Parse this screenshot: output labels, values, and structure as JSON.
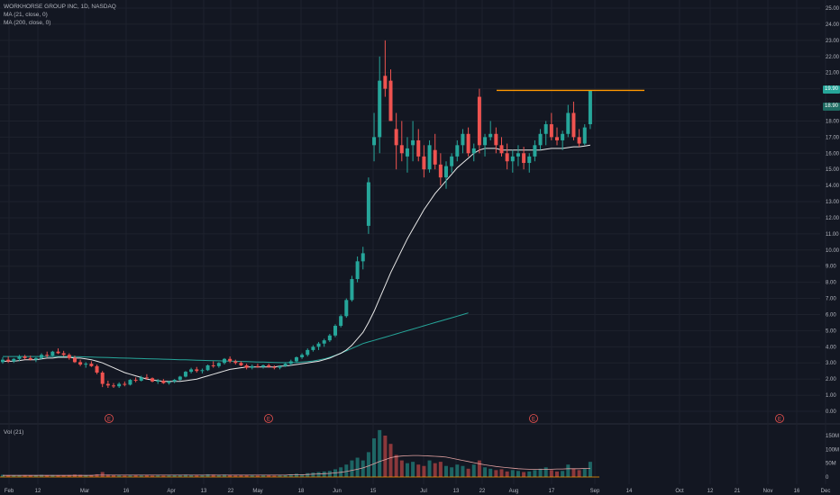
{
  "legend": {
    "title": "WORKHORSE GROUP INC, 1D, NASDAQ",
    "ma1": "MA (21, close, 0)",
    "ma2": "MA (200, close, 0)"
  },
  "volume_label": "Vol (21)",
  "price_tags": [
    "19.90",
    "18.90"
  ],
  "colors": {
    "background": "#131722",
    "up": "#26a69a",
    "down": "#ef5350",
    "ma21": "#e8e8e8",
    "ma200": "#26a69a",
    "resistance": "#ff9800",
    "grid": "#1e222d",
    "axis_text": "#b2b5be"
  },
  "chart_data": {
    "type": "candlestick",
    "title": "WORKHORSE GROUP INC, 1D, NASDAQ",
    "price_ticks": [
      "25.00",
      "24.00",
      "23.00",
      "22.00",
      "21.00",
      "20.00",
      "19.00",
      "18.00",
      "17.00",
      "16.00",
      "15.00",
      "14.00",
      "13.00",
      "12.00",
      "11.00",
      "10.00",
      "9.00",
      "8.00",
      "7.00",
      "6.00",
      "5.00",
      "4.00",
      "3.00",
      "2.00",
      "1.00",
      "0.00"
    ],
    "ylim": [
      0,
      25
    ],
    "volume_ticks": [
      "150M",
      "100M",
      "50M",
      "0"
    ],
    "x_ticks": [
      "Feb",
      "12",
      "Mar",
      "16",
      "Apr",
      "13",
      "22",
      "May",
      "18",
      "Jun",
      "15",
      "Jul",
      "13",
      "22",
      "Aug",
      "17",
      "Sep",
      "14",
      "Oct",
      "12",
      "21",
      "Nov",
      "16",
      "Dec"
    ],
    "earnings_markers": [
      "E",
      "E",
      "E",
      "E"
    ],
    "resistance_level": 19.9,
    "candles": [
      [
        3.05,
        3.35,
        2.95,
        3.2
      ],
      [
        3.2,
        3.4,
        3.0,
        3.1
      ],
      [
        3.1,
        3.3,
        3.0,
        3.25
      ],
      [
        3.25,
        3.5,
        3.1,
        3.4
      ],
      [
        3.4,
        3.5,
        3.2,
        3.3
      ],
      [
        3.3,
        3.45,
        3.15,
        3.2
      ],
      [
        3.2,
        3.35,
        3.05,
        3.3
      ],
      [
        3.3,
        3.6,
        3.2,
        3.5
      ],
      [
        3.5,
        3.7,
        3.35,
        3.45
      ],
      [
        3.45,
        3.75,
        3.4,
        3.7
      ],
      [
        3.7,
        3.9,
        3.55,
        3.6
      ],
      [
        3.6,
        3.75,
        3.4,
        3.5
      ],
      [
        3.5,
        3.6,
        3.2,
        3.3
      ],
      [
        3.3,
        3.45,
        3.0,
        3.05
      ],
      [
        3.05,
        3.2,
        2.8,
        2.9
      ],
      [
        2.9,
        3.05,
        2.7,
        2.95
      ],
      [
        2.95,
        3.1,
        2.75,
        2.8
      ],
      [
        2.8,
        2.9,
        2.3,
        2.4
      ],
      [
        2.4,
        2.5,
        1.5,
        1.7
      ],
      [
        1.7,
        1.9,
        1.45,
        1.6
      ],
      [
        1.6,
        1.75,
        1.45,
        1.55
      ],
      [
        1.55,
        1.8,
        1.45,
        1.7
      ],
      [
        1.7,
        1.85,
        1.55,
        1.65
      ],
      [
        1.65,
        2.0,
        1.6,
        1.95
      ],
      [
        1.95,
        2.1,
        1.8,
        1.9
      ],
      [
        1.9,
        2.2,
        1.85,
        2.1
      ],
      [
        2.1,
        2.3,
        1.95,
        2.05
      ],
      [
        2.05,
        2.1,
        1.8,
        1.85
      ],
      [
        1.85,
        2.0,
        1.7,
        1.9
      ],
      [
        1.9,
        2.0,
        1.7,
        1.75
      ],
      [
        1.75,
        1.9,
        1.65,
        1.85
      ],
      [
        1.85,
        2.0,
        1.75,
        1.95
      ],
      [
        1.95,
        2.2,
        1.9,
        2.15
      ],
      [
        2.15,
        2.5,
        2.1,
        2.45
      ],
      [
        2.45,
        2.7,
        2.35,
        2.6
      ],
      [
        2.6,
        2.75,
        2.4,
        2.5
      ],
      [
        2.5,
        2.65,
        2.35,
        2.55
      ],
      [
        2.55,
        2.9,
        2.5,
        2.85
      ],
      [
        2.85,
        3.1,
        2.7,
        2.8
      ],
      [
        2.8,
        3.05,
        2.7,
        3.0
      ],
      [
        3.0,
        3.3,
        2.9,
        3.25
      ],
      [
        3.25,
        3.4,
        3.0,
        3.1
      ],
      [
        3.1,
        3.2,
        2.9,
        3.0
      ],
      [
        3.0,
        3.1,
        2.8,
        2.85
      ],
      [
        2.85,
        2.95,
        2.6,
        2.7
      ],
      [
        2.7,
        2.9,
        2.6,
        2.8
      ],
      [
        2.8,
        2.95,
        2.7,
        2.75
      ],
      [
        2.75,
        2.9,
        2.65,
        2.85
      ],
      [
        2.85,
        2.95,
        2.7,
        2.75
      ],
      [
        2.75,
        2.85,
        2.6,
        2.7
      ],
      [
        2.7,
        2.85,
        2.6,
        2.8
      ],
      [
        2.8,
        3.0,
        2.75,
        2.95
      ],
      [
        2.95,
        3.2,
        2.85,
        3.1
      ],
      [
        3.1,
        3.4,
        3.0,
        3.35
      ],
      [
        3.35,
        3.6,
        3.25,
        3.5
      ],
      [
        3.5,
        3.9,
        3.4,
        3.8
      ],
      [
        3.8,
        4.1,
        3.7,
        4.0
      ],
      [
        4.0,
        4.3,
        3.8,
        4.2
      ],
      [
        4.2,
        4.5,
        4.0,
        4.4
      ],
      [
        4.4,
        4.8,
        4.3,
        4.7
      ],
      [
        4.7,
        5.4,
        4.6,
        5.3
      ],
      [
        5.3,
        6.0,
        5.2,
        5.9
      ],
      [
        5.9,
        7.0,
        5.8,
        6.9
      ],
      [
        6.9,
        8.4,
        6.8,
        8.2
      ],
      [
        8.2,
        9.6,
        8.0,
        9.3
      ],
      [
        9.3,
        10.2,
        8.8,
        9.8
      ],
      [
        11.5,
        14.5,
        11.0,
        14.2
      ],
      [
        16.5,
        18.5,
        15.5,
        17.0
      ],
      [
        17.0,
        22.0,
        16.0,
        20.5
      ],
      [
        20.8,
        23.0,
        19.5,
        20.0
      ],
      [
        20.5,
        21.2,
        18.0,
        18.0
      ],
      [
        17.5,
        18.5,
        15.0,
        16.5
      ],
      [
        16.5,
        18.0,
        15.5,
        16.0
      ],
      [
        15.8,
        17.0,
        14.8,
        16.3
      ],
      [
        16.5,
        18.0,
        15.5,
        16.8
      ],
      [
        16.8,
        17.5,
        15.5,
        15.8
      ],
      [
        15.8,
        16.5,
        14.5,
        15.0
      ],
      [
        15.0,
        16.8,
        14.8,
        16.5
      ],
      [
        16.2,
        17.2,
        15.0,
        15.3
      ],
      [
        15.3,
        16.0,
        14.0,
        14.5
      ],
      [
        14.5,
        15.5,
        13.8,
        15.2
      ],
      [
        15.2,
        16.0,
        14.8,
        15.8
      ],
      [
        15.8,
        16.8,
        15.5,
        16.5
      ],
      [
        16.5,
        17.5,
        16.0,
        17.2
      ],
      [
        17.2,
        17.6,
        15.8,
        16.0
      ],
      [
        16.0,
        16.6,
        15.5,
        16.3
      ],
      [
        19.5,
        20.0,
        16.0,
        16.5
      ],
      [
        16.5,
        17.2,
        15.8,
        17.0
      ],
      [
        17.0,
        18.0,
        16.8,
        17.2
      ],
      [
        17.2,
        17.6,
        16.0,
        16.5
      ],
      [
        16.5,
        17.0,
        15.8,
        16.0
      ],
      [
        16.0,
        16.6,
        15.0,
        15.5
      ],
      [
        15.5,
        16.2,
        14.8,
        15.8
      ],
      [
        15.8,
        16.5,
        15.2,
        16.0
      ],
      [
        16.0,
        16.4,
        15.0,
        15.4
      ],
      [
        15.4,
        16.0,
        14.8,
        15.8
      ],
      [
        15.8,
        16.8,
        15.5,
        16.5
      ],
      [
        16.5,
        17.5,
        16.2,
        17.2
      ],
      [
        17.2,
        18.0,
        16.5,
        17.8
      ],
      [
        17.8,
        18.5,
        16.8,
        17.0
      ],
      [
        17.0,
        17.6,
        16.5,
        16.8
      ],
      [
        16.8,
        17.4,
        16.2,
        17.2
      ],
      [
        17.2,
        19.0,
        17.0,
        18.5
      ],
      [
        18.5,
        19.2,
        16.8,
        17.0
      ],
      [
        17.0,
        17.5,
        16.4,
        16.6
      ],
      [
        16.6,
        17.8,
        16.5,
        17.6
      ],
      [
        17.8,
        19.9,
        17.5,
        19.9
      ]
    ],
    "ma21": [
      3.1,
      3.1,
      3.1,
      3.15,
      3.2,
      3.2,
      3.2,
      3.25,
      3.3,
      3.3,
      3.35,
      3.35,
      3.35,
      3.3,
      3.3,
      3.25,
      3.2,
      3.1,
      3.0,
      2.85,
      2.7,
      2.55,
      2.4,
      2.3,
      2.2,
      2.1,
      2.0,
      1.95,
      1.9,
      1.85,
      1.85,
      1.85,
      1.85,
      1.9,
      1.95,
      2.0,
      2.1,
      2.2,
      2.3,
      2.4,
      2.5,
      2.6,
      2.65,
      2.7,
      2.75,
      2.75,
      2.75,
      2.75,
      2.75,
      2.75,
      2.8,
      2.8,
      2.85,
      2.9,
      2.95,
      3.0,
      3.05,
      3.1,
      3.2,
      3.3,
      3.45,
      3.6,
      3.8,
      4.1,
      4.5,
      4.9,
      5.5,
      6.2,
      7.0,
      7.8,
      8.6,
      9.3,
      10.0,
      10.7,
      11.3,
      11.9,
      12.5,
      13.0,
      13.5,
      13.9,
      14.3,
      14.7,
      15.1,
      15.4,
      15.7,
      16.0,
      16.2,
      16.3,
      16.3,
      16.3,
      16.2,
      16.2,
      16.2,
      16.2,
      16.2,
      16.2,
      16.2,
      16.2,
      16.25,
      16.3,
      16.3,
      16.3,
      16.35,
      16.4,
      16.4,
      16.45,
      16.5
    ],
    "ma200": [
      3.4,
      3.4,
      3.4,
      3.4,
      3.4,
      3.4,
      3.4,
      3.4,
      3.4,
      3.4,
      3.4,
      3.4,
      3.4,
      3.39,
      3.38,
      3.37,
      3.36,
      3.35,
      3.34,
      3.33,
      3.32,
      3.31,
      3.3,
      3.29,
      3.28,
      3.27,
      3.26,
      3.25,
      3.24,
      3.23,
      3.22,
      3.21,
      3.2,
      3.19,
      3.18,
      3.17,
      3.16,
      3.15,
      3.14,
      3.13,
      3.12,
      3.11,
      3.1,
      3.09,
      3.08,
      3.07,
      3.06,
      3.05,
      3.04,
      3.03,
      3.02,
      3.02,
      3.02,
      3.03,
      3.05,
      3.08,
      3.12,
      3.18,
      3.25,
      3.35,
      3.47,
      3.6,
      3.75,
      3.9,
      4.05,
      4.2,
      4.3,
      4.4,
      4.5,
      4.6,
      4.7,
      4.8,
      4.9,
      5.0,
      5.1,
      5.2,
      5.3,
      5.4,
      5.5,
      5.6,
      5.7,
      5.8,
      5.9,
      6.0,
      6.1
    ],
    "volume": [
      8,
      6,
      5,
      6,
      7,
      5,
      6,
      8,
      6,
      7,
      6,
      5,
      7,
      9,
      8,
      6,
      7,
      10,
      18,
      9,
      7,
      6,
      5,
      6,
      8,
      6,
      7,
      5,
      6,
      5,
      6,
      7,
      8,
      9,
      7,
      6,
      8,
      10,
      9,
      8,
      9,
      7,
      6,
      7,
      8,
      6,
      5,
      6,
      7,
      5,
      6,
      8,
      10,
      12,
      10,
      14,
      16,
      18,
      20,
      22,
      28,
      35,
      45,
      60,
      70,
      60,
      90,
      140,
      170,
      150,
      120,
      80,
      60,
      50,
      55,
      45,
      40,
      60,
      50,
      55,
      40,
      35,
      45,
      40,
      30,
      45,
      60,
      35,
      30,
      25,
      28,
      20,
      25,
      22,
      18,
      20,
      25,
      30,
      35,
      25,
      20,
      22,
      45,
      30,
      25,
      30,
      55
    ],
    "volume_ma": [
      6,
      6,
      6,
      6,
      6,
      6,
      6,
      6,
      6,
      6,
      6,
      6,
      6,
      6,
      6,
      6,
      6,
      7,
      7,
      7,
      7,
      7,
      7,
      7,
      7,
      7,
      7,
      7,
      7,
      7,
      7,
      7,
      7,
      7,
      7,
      7,
      7,
      7,
      7,
      7,
      7,
      7,
      7,
      7,
      7,
      7,
      7,
      7,
      7,
      7,
      7,
      7,
      8,
      8,
      8,
      9,
      10,
      11,
      12,
      13,
      15,
      17,
      20,
      24,
      28,
      33,
      40,
      48,
      56,
      63,
      70,
      74,
      76,
      77,
      78,
      78,
      77,
      76,
      75,
      74,
      72,
      68,
      64,
      60,
      56,
      52,
      48,
      44,
      41,
      38,
      36,
      34,
      32,
      30,
      29,
      28,
      28,
      28,
      28,
      28,
      29,
      29,
      30,
      30,
      30,
      31,
      31
    ]
  }
}
